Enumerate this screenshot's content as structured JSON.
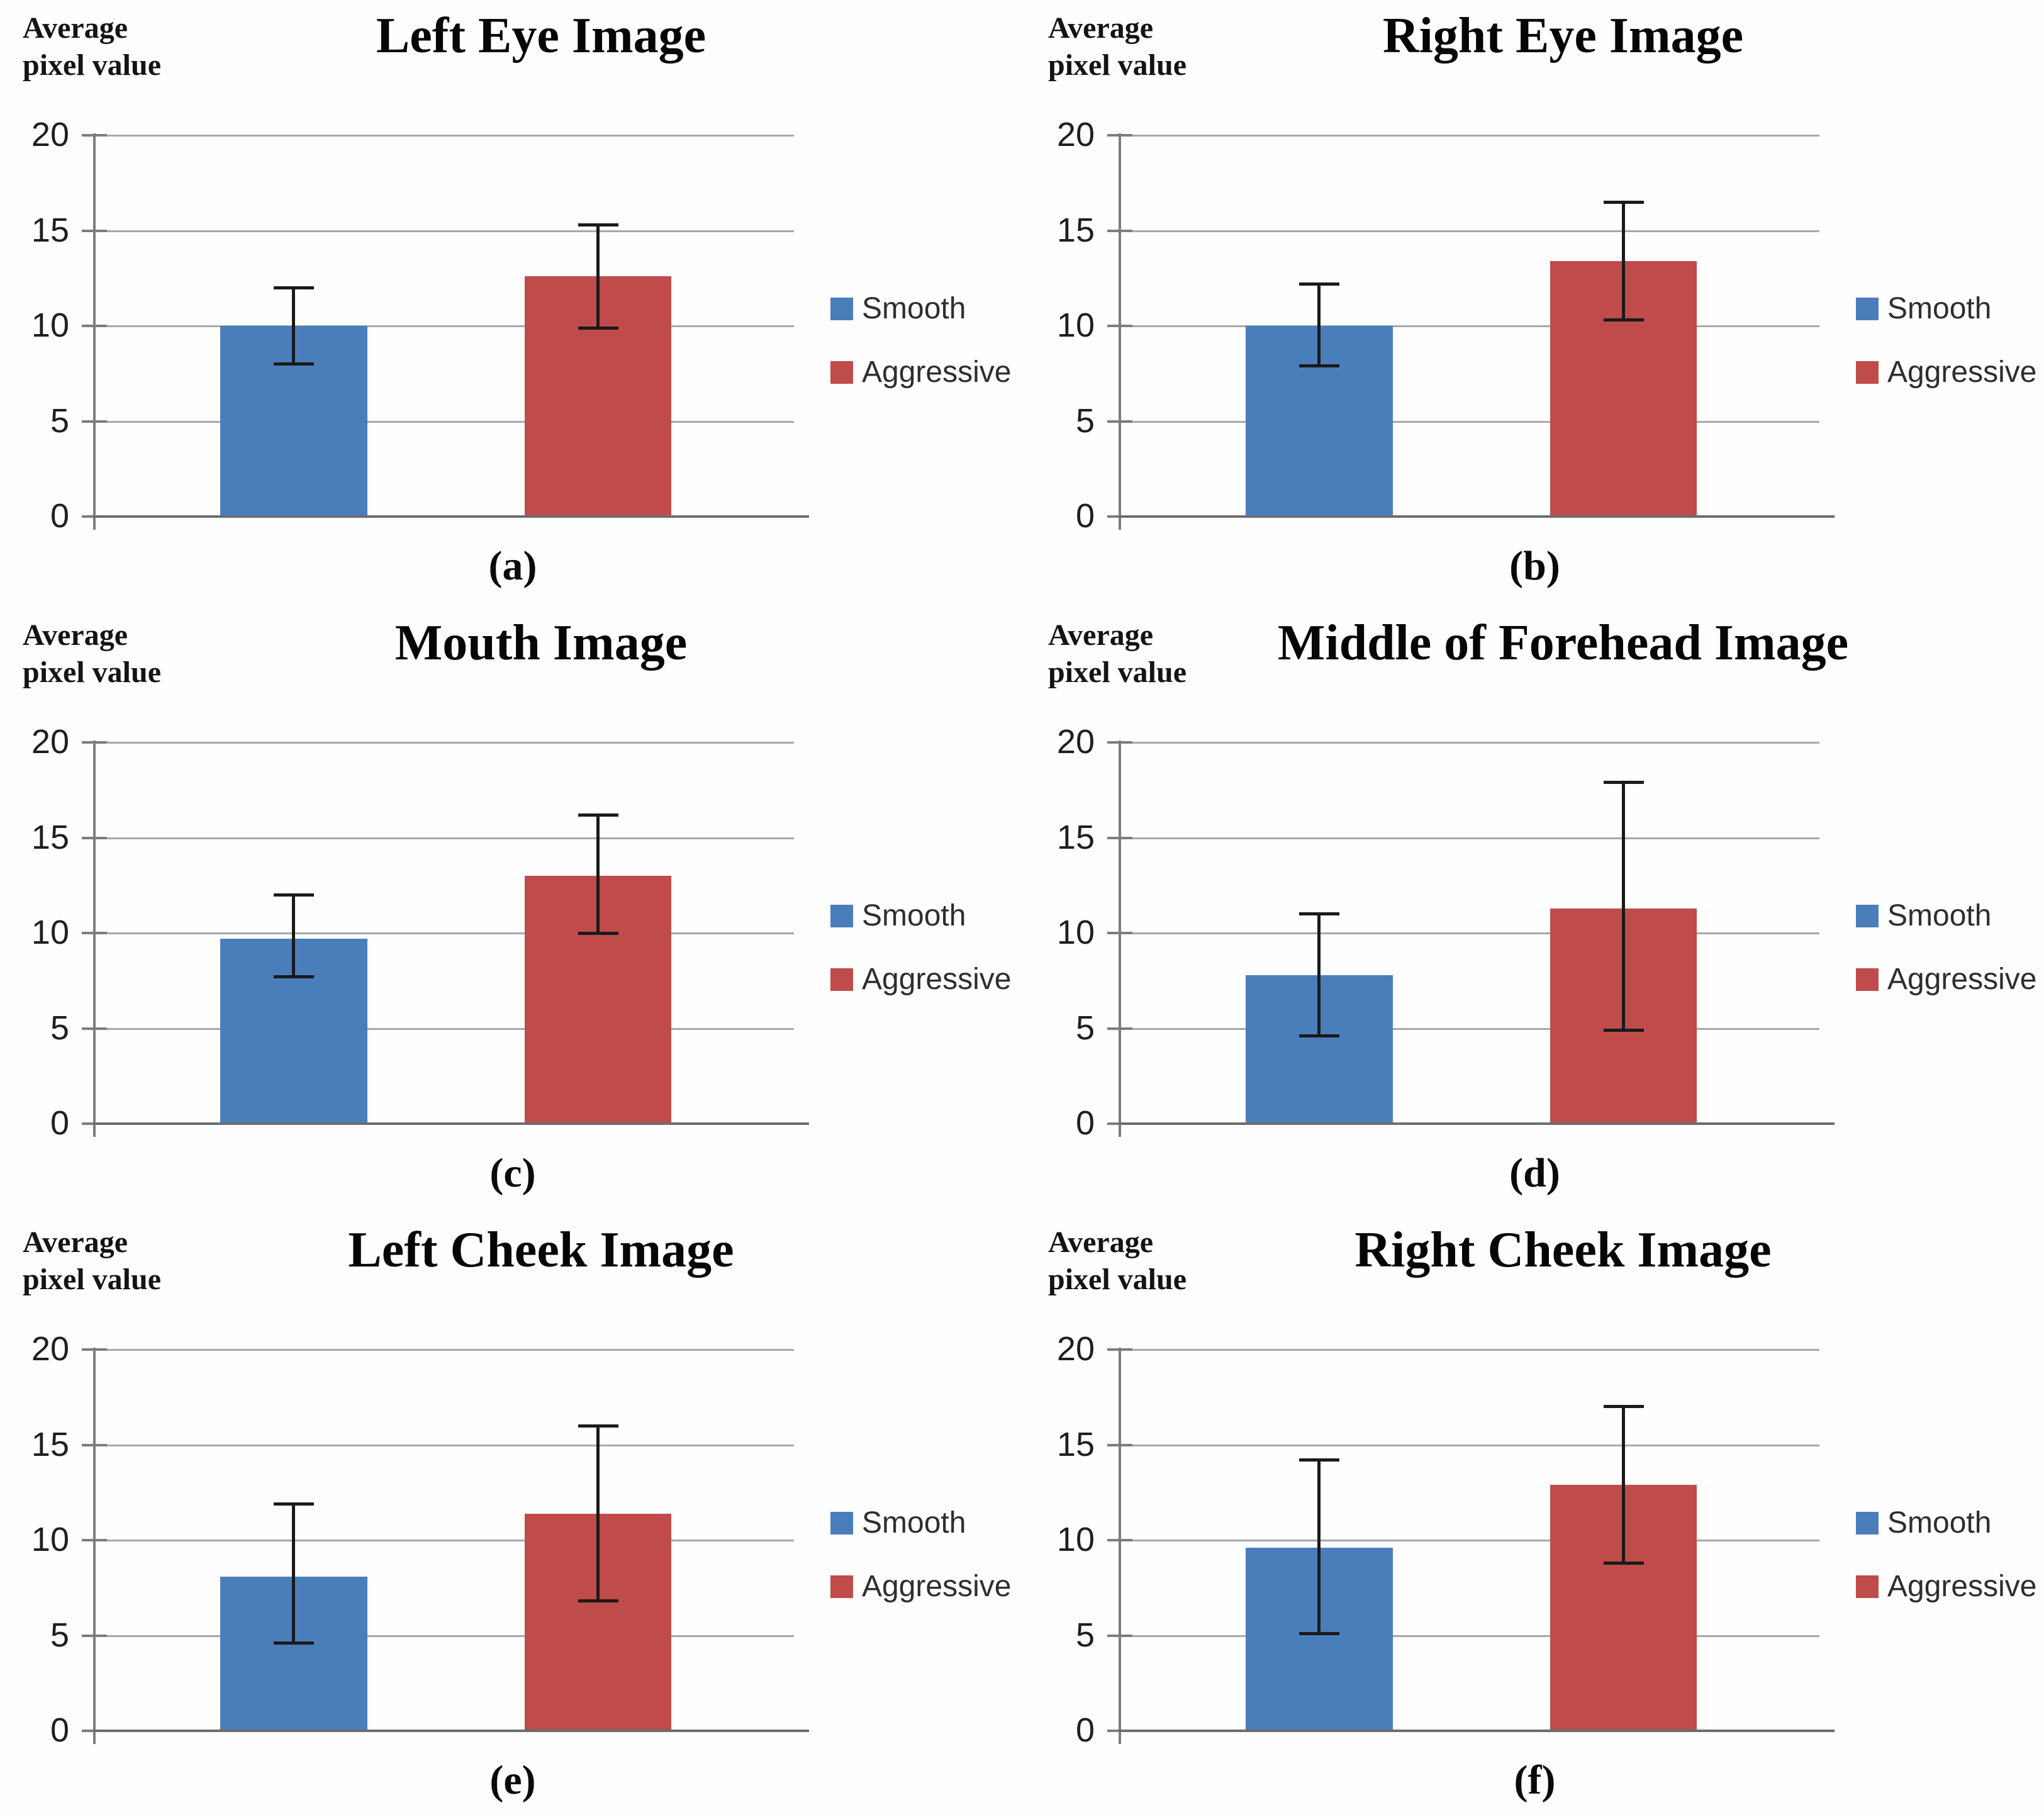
{
  "figure": {
    "y_axis_label": "Average pixel value",
    "legend_labels": [
      "Smooth",
      "Aggressive"
    ],
    "colors": {
      "smooth_bar": "#4A7EBB",
      "aggressive_bar": "#C04B4B",
      "gridline": "#A8A8A8",
      "axis": "#6D6D6D",
      "error_bar": "#1A1A1A"
    }
  },
  "chart_data": [
    {
      "type": "bar",
      "panel": "(a)",
      "title": "Left Eye Image",
      "ylabel": "Average pixel value",
      "categories": [
        "Smooth",
        "Aggressive"
      ],
      "values": [
        10.0,
        12.6
      ],
      "error_low": [
        8.0,
        9.9
      ],
      "error_high": [
        12.0,
        15.3
      ],
      "ylim": [
        0,
        20
      ],
      "yticks": [
        0,
        5,
        10,
        15,
        20
      ],
      "grid": true,
      "legend": [
        "Smooth",
        "Aggressive"
      ],
      "legend_position": "right"
    },
    {
      "type": "bar",
      "panel": "(b)",
      "title": "Right Eye Image",
      "ylabel": "Average pixel value",
      "categories": [
        "Smooth",
        "Aggressive"
      ],
      "values": [
        10.0,
        13.4
      ],
      "error_low": [
        7.9,
        10.3
      ],
      "error_high": [
        12.2,
        16.5
      ],
      "ylim": [
        0,
        20
      ],
      "yticks": [
        0,
        5,
        10,
        15,
        20
      ],
      "grid": true,
      "legend": [
        "Smooth",
        "Aggressive"
      ],
      "legend_position": "right"
    },
    {
      "type": "bar",
      "panel": "(c)",
      "title": "Mouth Image",
      "ylabel": "Average pixel value",
      "categories": [
        "Smooth",
        "Aggressive"
      ],
      "values": [
        9.7,
        13.0
      ],
      "error_low": [
        7.7,
        10.0
      ],
      "error_high": [
        12.0,
        16.2
      ],
      "ylim": [
        0,
        20
      ],
      "yticks": [
        0,
        5,
        10,
        15,
        20
      ],
      "grid": true,
      "legend": [
        "Smooth",
        "Aggressive"
      ],
      "legend_position": "right"
    },
    {
      "type": "bar",
      "panel": "(d)",
      "title": "Middle of Forehead Image",
      "ylabel": "Average pixel value",
      "categories": [
        "Smooth",
        "Aggressive"
      ],
      "values": [
        7.8,
        11.3
      ],
      "error_low": [
        4.6,
        4.9
      ],
      "error_high": [
        11.0,
        17.9
      ],
      "ylim": [
        0,
        20
      ],
      "yticks": [
        0,
        5,
        10,
        15,
        20
      ],
      "grid": true,
      "legend": [
        "Smooth",
        "Aggressive"
      ],
      "legend_position": "right"
    },
    {
      "type": "bar",
      "panel": "(e)",
      "title": "Left Cheek Image",
      "ylabel": "Average pixel value",
      "categories": [
        "Smooth",
        "Aggressive"
      ],
      "values": [
        8.1,
        11.4
      ],
      "error_low": [
        4.6,
        6.8
      ],
      "error_high": [
        11.9,
        16.0
      ],
      "ylim": [
        0,
        20
      ],
      "yticks": [
        0,
        5,
        10,
        15,
        20
      ],
      "grid": true,
      "legend": [
        "Smooth",
        "Aggressive"
      ],
      "legend_position": "right"
    },
    {
      "type": "bar",
      "panel": "(f)",
      "title": "Right Cheek Image",
      "ylabel": "Average pixel value",
      "categories": [
        "Smooth",
        "Aggressive"
      ],
      "values": [
        9.6,
        12.9
      ],
      "error_low": [
        5.1,
        8.8
      ],
      "error_high": [
        14.2,
        17.0
      ],
      "ylim": [
        0,
        20
      ],
      "yticks": [
        0,
        5,
        10,
        15,
        20
      ],
      "grid": true,
      "legend": [
        "Smooth",
        "Aggressive"
      ],
      "legend_position": "right"
    }
  ]
}
